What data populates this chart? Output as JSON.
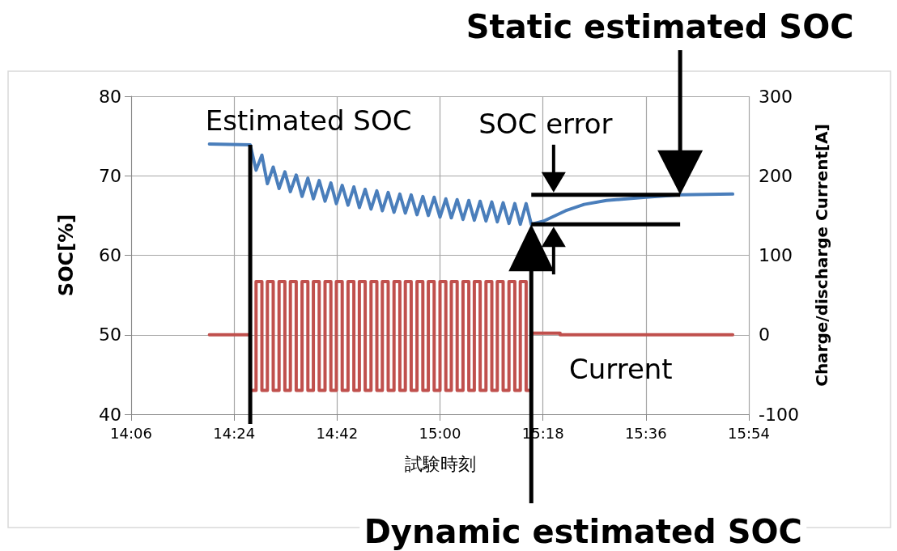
{
  "chart_data": {
    "type": "line",
    "xlabel": "試験時刻",
    "ylabel": "SOC[%]",
    "y2label": "Charge/discharge Current[A]",
    "xlim": [
      14.1,
      15.9
    ],
    "xticks": [
      {
        "value": 14.1,
        "label": "14:06"
      },
      {
        "value": 14.4,
        "label": "14:24"
      },
      {
        "value": 14.7,
        "label": "14:42"
      },
      {
        "value": 15.0,
        "label": "15:00"
      },
      {
        "value": 15.3,
        "label": "15:18"
      },
      {
        "value": 15.6,
        "label": "15:36"
      },
      {
        "value": 15.9,
        "label": "15:54"
      }
    ],
    "ylim": [
      40,
      80
    ],
    "yticks": [
      40,
      50,
      60,
      70,
      80
    ],
    "y2lim": [
      -100,
      300
    ],
    "y2ticks": [
      -100,
      0,
      100,
      200,
      300
    ],
    "grid": true,
    "series": [
      {
        "color": "#4a7ebb",
        "x": [
          14.328,
          14.447,
          14.464,
          14.481,
          14.497,
          14.514,
          14.531,
          14.548,
          14.564,
          14.581,
          14.598,
          14.615,
          14.631,
          14.648,
          14.665,
          14.682,
          14.698,
          14.715,
          14.732,
          14.749,
          14.765,
          14.782,
          14.799,
          14.816,
          14.832,
          14.849,
          14.866,
          14.883,
          14.899,
          14.916,
          14.933,
          14.95,
          14.966,
          14.983,
          15.0,
          15.017,
          15.033,
          15.05,
          15.067,
          15.084,
          15.1,
          15.117,
          15.134,
          15.151,
          15.167,
          15.184,
          15.201,
          15.218,
          15.234,
          15.251,
          15.266,
          15.302,
          15.366,
          15.42,
          15.485,
          15.6,
          15.7,
          15.853
        ],
        "values": [
          74.0,
          73.9,
          70.7,
          72.6,
          69.0,
          71.1,
          68.4,
          70.5,
          68.0,
          70.1,
          67.4,
          69.7,
          67.1,
          69.4,
          66.8,
          69.1,
          66.5,
          68.8,
          66.3,
          68.6,
          66.0,
          68.3,
          65.8,
          68.1,
          65.6,
          67.9,
          65.4,
          67.7,
          65.3,
          67.6,
          65.1,
          67.4,
          65.0,
          67.3,
          64.8,
          67.1,
          64.7,
          67.0,
          64.5,
          66.9,
          64.4,
          66.8,
          64.3,
          66.7,
          64.2,
          66.6,
          64.0,
          66.5,
          63.9,
          66.5,
          63.9,
          64.3,
          65.6,
          66.4,
          66.9,
          67.3,
          67.6,
          67.7
        ]
      },
      {
        "type": "step",
        "axis": "y2",
        "color": "#c0504d",
        "x": [
          14.328,
          14.447,
          14.464,
          14.481,
          14.497,
          14.514,
          14.531,
          14.548,
          14.564,
          14.581,
          14.598,
          14.615,
          14.631,
          14.648,
          14.665,
          14.682,
          14.698,
          14.715,
          14.732,
          14.749,
          14.765,
          14.782,
          14.799,
          14.816,
          14.832,
          14.849,
          14.866,
          14.883,
          14.899,
          14.916,
          14.933,
          14.95,
          14.966,
          14.983,
          15.0,
          15.017,
          15.033,
          15.05,
          15.067,
          15.084,
          15.1,
          15.117,
          15.134,
          15.151,
          15.167,
          15.184,
          15.201,
          15.218,
          15.234,
          15.251,
          15.266,
          15.35,
          15.853
        ],
        "values": [
          0,
          -70,
          67,
          -70,
          67,
          -70,
          67,
          -70,
          67,
          -70,
          67,
          -70,
          67,
          -70,
          67,
          -70,
          67,
          -70,
          67,
          -70,
          67,
          -70,
          67,
          -70,
          67,
          -70,
          67,
          -70,
          67,
          -70,
          67,
          -70,
          67,
          -70,
          67,
          -70,
          67,
          -70,
          67,
          -70,
          67,
          -70,
          67,
          -70,
          67,
          -70,
          67,
          -70,
          67,
          -70,
          2,
          0,
          0
        ]
      }
    ],
    "ref_lines": [
      {
        "axis": "x",
        "value": 14.447,
        "label": "Estimated SOC",
        "color": "#000000"
      },
      {
        "axis": "y",
        "value": 67.6,
        "color": "#000000"
      },
      {
        "axis": "y",
        "value": 63.9,
        "color": "#000000"
      }
    ],
    "annotations": [
      "SOC error",
      "Static estimated SOC",
      "Dynamic estimated SOC",
      "Current"
    ]
  }
}
